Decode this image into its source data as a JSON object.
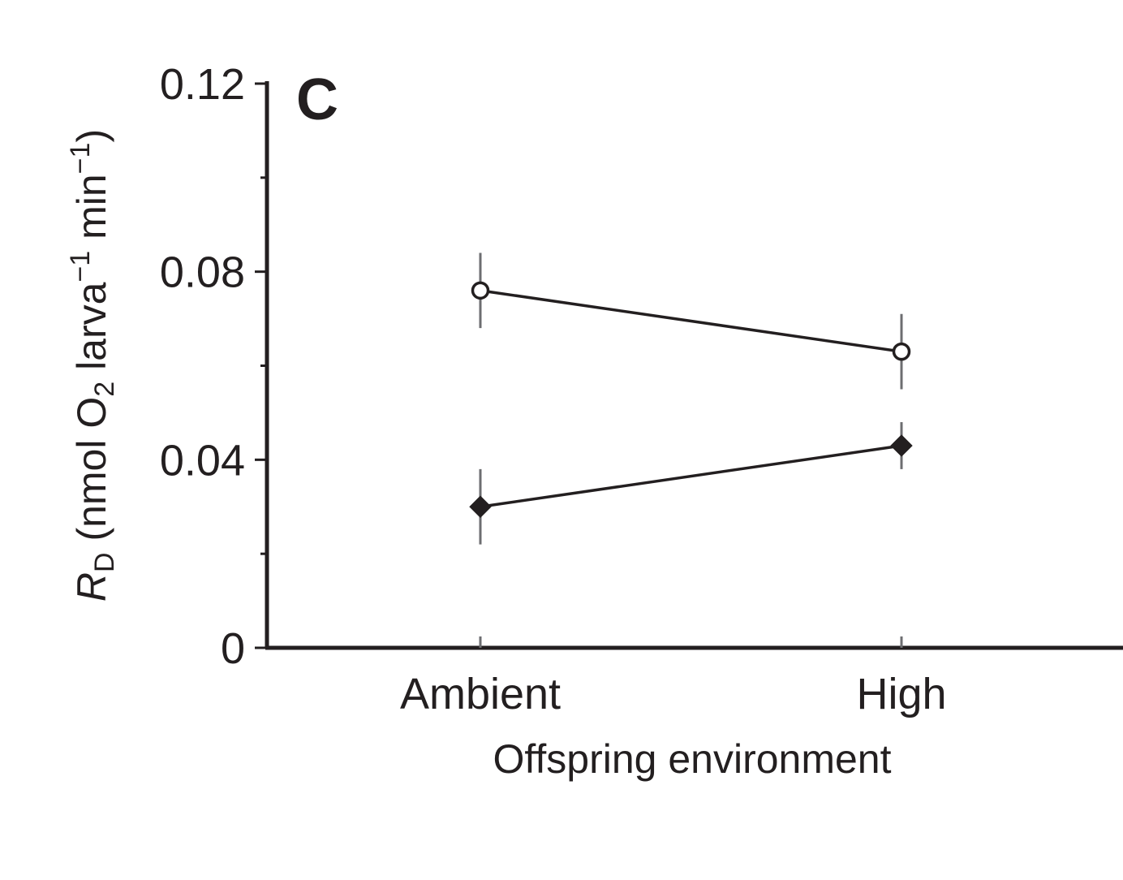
{
  "chart_data": {
    "type": "line",
    "panel_label": "C",
    "categories": [
      "Ambient",
      "High"
    ],
    "xlabel": "Offspring environment",
    "ylabel": {
      "symbol": "R",
      "symbol_sub": "D",
      "open": " (nmol O",
      "o2_sub": "2",
      "larva": " larva",
      "larva_sup": "−1",
      "min": " min",
      "min_sup": "−1",
      "close": ")"
    },
    "ylim": [
      0,
      0.12
    ],
    "yticks": [
      0,
      0.04,
      0.08,
      0.12
    ],
    "ytick_labels": [
      "0",
      "0.04",
      "0.08",
      "0.12"
    ],
    "grid": false,
    "series": [
      {
        "marker": "open-circle",
        "values": [
          0.076,
          0.063
        ],
        "err_low": [
          0.068,
          0.055
        ],
        "err_high": [
          0.084,
          0.071
        ]
      },
      {
        "marker": "filled-diamond",
        "values": [
          0.03,
          0.043
        ],
        "err_low": [
          0.022,
          0.038
        ],
        "err_high": [
          0.038,
          0.048
        ]
      }
    ],
    "colors": {
      "ink": "#231f20",
      "open_fill": "#ffffff",
      "error_bar": "#6d6e71"
    }
  }
}
